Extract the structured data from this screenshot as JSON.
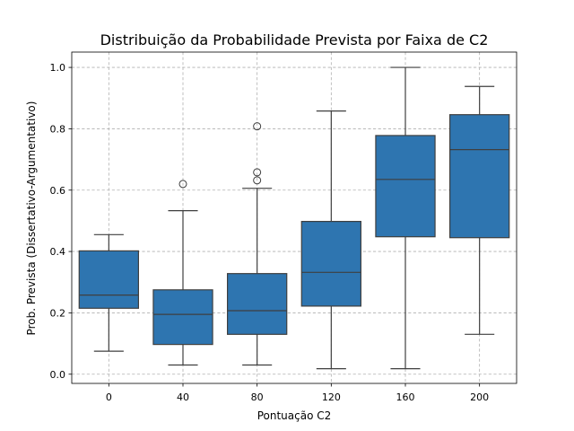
{
  "chart_data": {
    "type": "box",
    "title": "Distribuição da Probabilidade Prevista por Faixa de C2",
    "xlabel": "Pontuação C2",
    "ylabel": "Prob. Prevista (Dissertativo-Argumentativo)",
    "ylim": [
      -0.03,
      1.05
    ],
    "yticks": [
      "0.0",
      "0.2",
      "0.4",
      "0.6",
      "0.8",
      "1.0"
    ],
    "grid": true,
    "box_color": "#2e75b0",
    "line_color": "#3f3f3f",
    "categories": [
      "0",
      "40",
      "80",
      "120",
      "160",
      "200"
    ],
    "boxes": [
      {
        "category": "0",
        "whisker_low": 0.075,
        "q1": 0.215,
        "median": 0.258,
        "q3": 0.402,
        "whisker_high": 0.455,
        "outliers": []
      },
      {
        "category": "40",
        "whisker_low": 0.03,
        "q1": 0.097,
        "median": 0.195,
        "q3": 0.275,
        "whisker_high": 0.533,
        "outliers": [
          0.62
        ]
      },
      {
        "category": "80",
        "whisker_low": 0.03,
        "q1": 0.13,
        "median": 0.207,
        "q3": 0.328,
        "whisker_high": 0.606,
        "outliers": [
          0.632,
          0.658,
          0.808
        ]
      },
      {
        "category": "120",
        "whisker_low": 0.018,
        "q1": 0.222,
        "median": 0.332,
        "q3": 0.498,
        "whisker_high": 0.858,
        "outliers": []
      },
      {
        "category": "160",
        "whisker_low": 0.018,
        "q1": 0.448,
        "median": 0.635,
        "q3": 0.778,
        "whisker_high": 1.0,
        "outliers": []
      },
      {
        "category": "200",
        "whisker_low": 0.13,
        "q1": 0.445,
        "median": 0.732,
        "q3": 0.846,
        "whisker_high": 0.938,
        "outliers": []
      }
    ]
  }
}
